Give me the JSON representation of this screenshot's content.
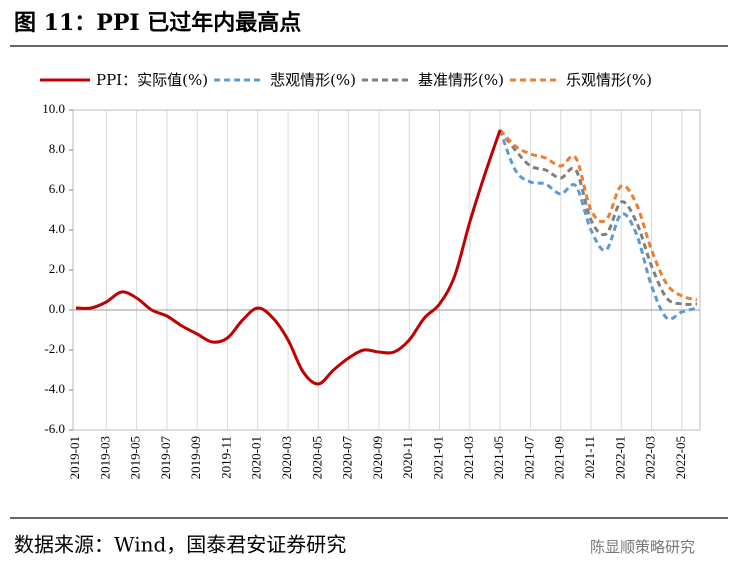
{
  "chart_data": {
    "type": "line",
    "title": "图 11：PPI 已过年内最高点",
    "source": "数据来源：Wind，国泰君安证券研究",
    "watermark": "陈显顺策略研究",
    "categories": [
      "2019-01",
      null,
      "2019-03",
      null,
      "2019-05",
      null,
      "2019-07",
      null,
      "2019-09",
      null,
      "2019-11",
      null,
      "2020-01",
      null,
      "2020-03",
      null,
      "2020-05",
      null,
      "2020-07",
      null,
      "2020-09",
      null,
      "2020-11",
      null,
      "2021-01",
      null,
      "2021-03",
      null,
      "2021-05",
      null,
      "2021-07",
      null,
      "2021-09",
      null,
      "2021-11",
      null,
      "2022-01",
      null,
      "2022-03",
      null,
      "2022-05",
      null
    ],
    "series": [
      {
        "name": "PPI：实际值(%)",
        "color": "#c00000",
        "dashed": false,
        "values": [
          0.1,
          0.1,
          0.4,
          0.9,
          0.6,
          0.0,
          -0.3,
          -0.8,
          -1.2,
          -1.6,
          -1.4,
          -0.5,
          0.1,
          -0.4,
          -1.5,
          -3.1,
          -3.7,
          -3.0,
          -2.4,
          -2.0,
          -2.1,
          -2.1,
          -1.5,
          -0.4,
          0.3,
          1.7,
          4.4,
          6.8,
          9.0,
          null,
          null,
          null,
          null,
          null,
          null,
          null,
          null,
          null,
          null,
          null,
          null,
          null
        ]
      },
      {
        "name": "悲观情形(%)",
        "color": "#5b9bd5",
        "dashed": true,
        "values": [
          null,
          null,
          null,
          null,
          null,
          null,
          null,
          null,
          null,
          null,
          null,
          null,
          null,
          null,
          null,
          null,
          null,
          null,
          null,
          null,
          null,
          null,
          null,
          null,
          null,
          null,
          null,
          null,
          9.0,
          7.0,
          6.4,
          6.3,
          5.8,
          6.2,
          4.0,
          3.0,
          4.8,
          3.8,
          1.2,
          -0.4,
          -0.1,
          0.1
        ]
      },
      {
        "name": "基准情形(%)",
        "color": "#7f7f7f",
        "dashed": true,
        "values": [
          null,
          null,
          null,
          null,
          null,
          null,
          null,
          null,
          null,
          null,
          null,
          null,
          null,
          null,
          null,
          null,
          null,
          null,
          null,
          null,
          null,
          null,
          null,
          null,
          null,
          null,
          null,
          null,
          9.0,
          8.0,
          7.2,
          7.0,
          6.6,
          7.0,
          4.5,
          3.8,
          5.4,
          4.4,
          2.2,
          0.6,
          0.3,
          0.3
        ]
      },
      {
        "name": "乐观情形(%)",
        "color": "#ed7d31",
        "dashed": true,
        "values": [
          null,
          null,
          null,
          null,
          null,
          null,
          null,
          null,
          null,
          null,
          null,
          null,
          null,
          null,
          null,
          null,
          null,
          null,
          null,
          null,
          null,
          null,
          null,
          null,
          null,
          null,
          null,
          null,
          9.0,
          8.2,
          7.8,
          7.6,
          7.2,
          7.6,
          5.0,
          4.5,
          6.2,
          5.3,
          3.0,
          1.3,
          0.7,
          0.5
        ]
      }
    ],
    "ylim": [
      -6,
      10
    ],
    "yticks": [
      {
        "value": -6,
        "label": "-6.0"
      },
      {
        "value": -4,
        "label": "-4.0"
      },
      {
        "value": -2,
        "label": "-2.0"
      },
      {
        "value": 0,
        "label": "0.0"
      },
      {
        "value": 2,
        "label": "2.0"
      },
      {
        "value": 4,
        "label": "4.0"
      },
      {
        "value": 6,
        "label": "6.0"
      },
      {
        "value": 8,
        "label": "8.0"
      },
      {
        "value": 10,
        "label": "10.0"
      }
    ],
    "grid": true
  }
}
